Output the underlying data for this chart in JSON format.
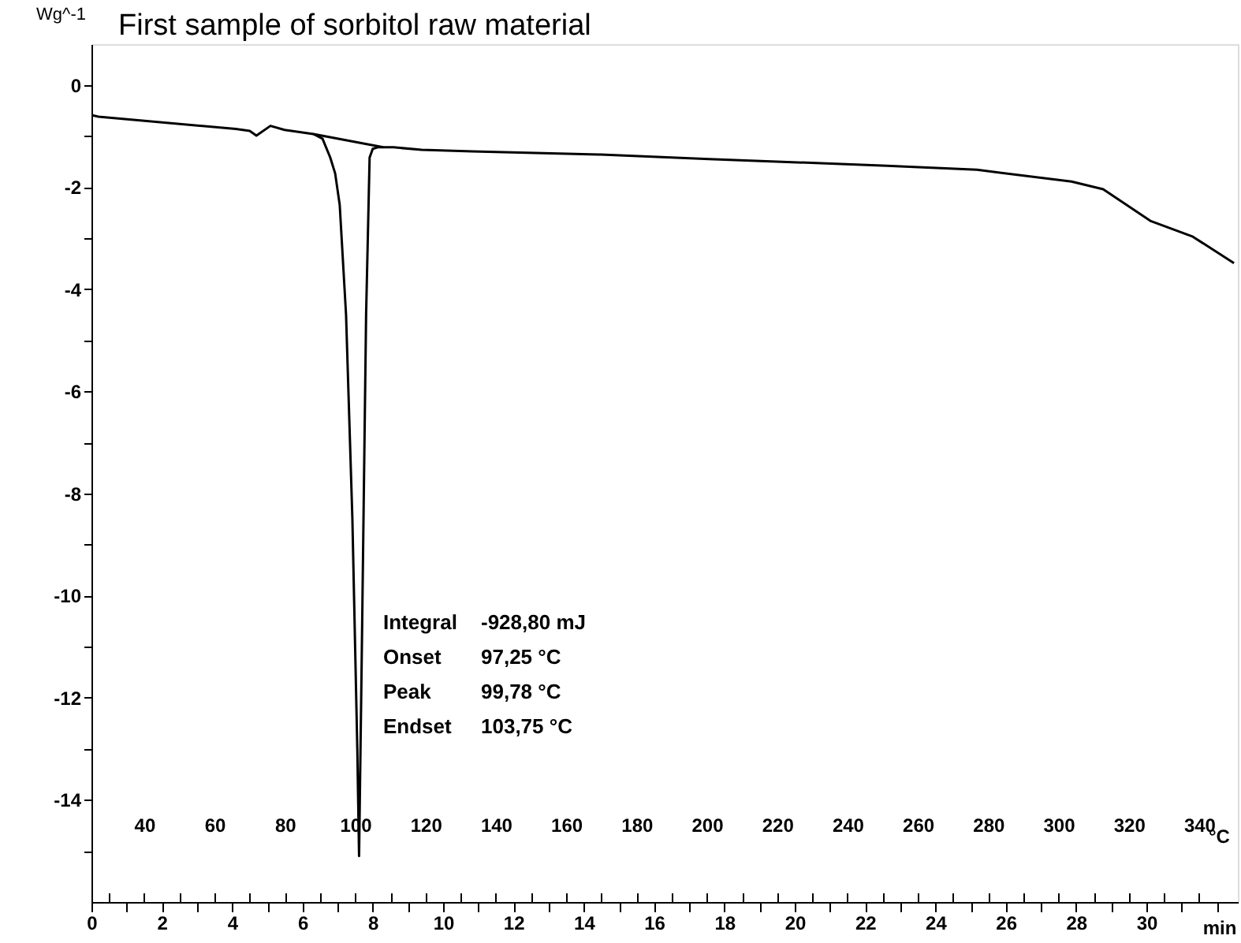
{
  "chart_data": {
    "type": "line",
    "title": "First sample of sorbitol raw material",
    "ylabel": "Wg^-1",
    "xlabel": "min",
    "x2label": "°C",
    "xlim": [
      0,
      32.6
    ],
    "ylim": [
      -16,
      0.8
    ],
    "x2lim": [
      25,
      351
    ],
    "xticks": [
      0,
      {
        "value": 1,
        "label": null
      },
      2,
      {
        "value": 3,
        "label": null
      },
      4,
      {
        "value": 5,
        "label": null
      },
      6,
      {
        "value": 7,
        "label": null
      },
      8,
      {
        "value": 9,
        "label": null
      },
      10,
      {
        "value": 11,
        "label": null
      },
      12,
      {
        "value": 13,
        "label": null
      },
      14,
      {
        "value": 15,
        "label": null
      },
      16,
      {
        "value": 17,
        "label": null
      },
      18,
      {
        "value": 19,
        "label": null
      },
      20,
      {
        "value": 21,
        "label": null
      },
      22,
      {
        "value": 23,
        "label": null
      },
      24,
      {
        "value": 25,
        "label": null
      },
      26,
      {
        "value": 27,
        "label": null
      },
      28,
      {
        "value": 29,
        "label": null
      },
      30,
      {
        "value": 31,
        "label": null
      },
      {
        "value": 32,
        "label": null
      }
    ],
    "x2ticks": [
      {
        "value": 30,
        "label": null
      },
      40,
      {
        "value": 50,
        "label": null
      },
      60,
      {
        "value": 70,
        "label": null
      },
      80,
      {
        "value": 90,
        "label": null
      },
      100,
      {
        "value": 110,
        "label": null
      },
      120,
      {
        "value": 130,
        "label": null
      },
      140,
      {
        "value": 150,
        "label": null
      },
      160,
      {
        "value": 170,
        "label": null
      },
      180,
      {
        "value": 190,
        "label": null
      },
      200,
      {
        "value": 210,
        "label": null
      },
      220,
      {
        "value": 230,
        "label": null
      },
      240,
      {
        "value": 250,
        "label": null
      },
      260,
      {
        "value": 270,
        "label": null
      },
      280,
      {
        "value": 290,
        "label": null
      },
      300,
      {
        "value": 310,
        "label": null
      },
      320,
      {
        "value": 330,
        "label": null
      },
      340
    ],
    "yticks": [
      0,
      {
        "value": -1,
        "label": null
      },
      -2,
      {
        "value": -3,
        "label": null
      },
      -4,
      {
        "value": -5,
        "label": null
      },
      -6,
      {
        "value": -7,
        "label": null
      },
      -8,
      {
        "value": -9,
        "label": null
      },
      -10,
      {
        "value": -11,
        "label": null
      },
      -12,
      {
        "value": -13,
        "label": null
      },
      -14,
      {
        "value": -15,
        "label": null
      }
    ],
    "grid": false,
    "legend": false,
    "marker": "none",
    "line_style": "solid",
    "series": [
      {
        "color": "#000000",
        "x": [
          0,
          0.2,
          4.1,
          4.5,
          4.69,
          5.09,
          5.49,
          6.31,
          6.57,
          6.79,
          6.93,
          7.06,
          7.24,
          7.42,
          7.56,
          7.61,
          7.69,
          7.81,
          7.91,
          8.0,
          8.14,
          8.59,
          9.39,
          10.83,
          14.42,
          17.56,
          22.62,
          25.18,
          27.87,
          28.77,
          30.11,
          31.32,
          32.49
        ],
        "values": [
          -0.59,
          -0.62,
          -0.86,
          -0.9,
          -0.99,
          -0.8,
          -0.88,
          -0.96,
          -1.05,
          -1.42,
          -1.73,
          -2.35,
          -4.5,
          -8.5,
          -13.0,
          -15.1,
          -11.0,
          -4.5,
          -1.42,
          -1.25,
          -1.22,
          -1.22,
          -1.27,
          -1.3,
          -1.36,
          -1.45,
          -1.58,
          -1.66,
          -1.89,
          -2.04,
          -2.66,
          -2.97,
          -3.49
        ]
      },
      {
        "color": "#000000",
        "x": [
          6.31,
          8.3
        ],
        "values": [
          -0.96,
          -1.22
        ]
      }
    ],
    "annotations": [
      "Integral -928,80 mJ",
      "Onset 97,25 °C",
      "Peak 99,78 °C",
      "Endset 103,75 °C"
    ]
  }
}
